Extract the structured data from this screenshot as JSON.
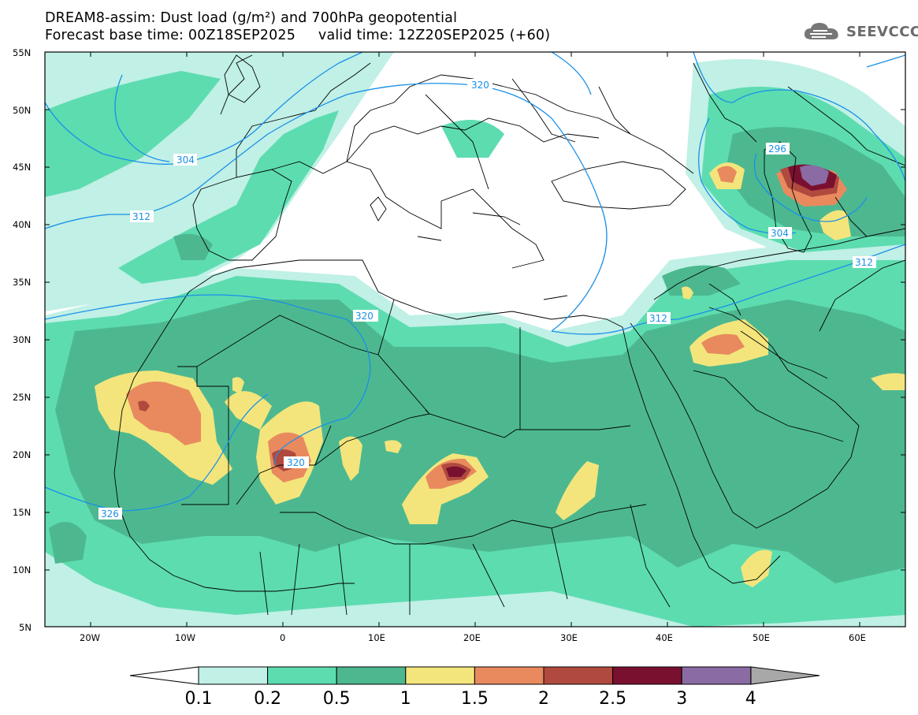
{
  "header": {
    "line1": "DREAM8-assim: Dust load (g/m²) and 700hPa geopotential",
    "line2": "Forecast base time: 00Z18SEP2025     valid time: 12Z20SEP2025 (+60)",
    "logo": "SEEVCCC",
    "logo_icon": "cloud-icon"
  },
  "axes": {
    "lat_labels": [
      "55N",
      "50N",
      "45N",
      "40N",
      "35N",
      "30N",
      "25N",
      "20N",
      "15N",
      "10N",
      "5N"
    ],
    "lon_labels": [
      "20W",
      "10W",
      "0",
      "10E",
      "20E",
      "30E",
      "40E",
      "50E",
      "60E"
    ]
  },
  "contour_labels": [
    "320",
    "304",
    "312",
    "320",
    "320",
    "326",
    "296",
    "304",
    "312",
    "312"
  ],
  "colorbar": {
    "labels": [
      "0.1",
      "0.2",
      "0.5",
      "1",
      "1.5",
      "2",
      "2.5",
      "3",
      "4"
    ],
    "colors": [
      "#c0f0e6",
      "#5ddcb0",
      "#4db890",
      "#f3e57c",
      "#e88a5e",
      "#b04a3e",
      "#7a1030",
      "#8a6ba4",
      "#a8a8a8"
    ]
  },
  "colors": {
    "contour": "#1a90e8",
    "land_border": "#000000"
  }
}
